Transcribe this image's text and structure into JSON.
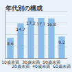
{
  "chart_data": {
    "type": "bar",
    "title": "年代別の構成",
    "categories": [
      "10歳未満",
      "20歳未満",
      "30歳未満",
      "40歳未満",
      "50歳未満",
      "60歳未満"
    ],
    "values": [
      8.6,
      14.7,
      17.2,
      17.1,
      16.8,
      9.2
    ],
    "color": "#8cbde8",
    "ylim": [
      0,
      20
    ],
    "yticks": [
      0,
      5,
      10,
      15,
      20
    ],
    "grid": true,
    "data_labels": true,
    "tick_labels": "x"
  }
}
